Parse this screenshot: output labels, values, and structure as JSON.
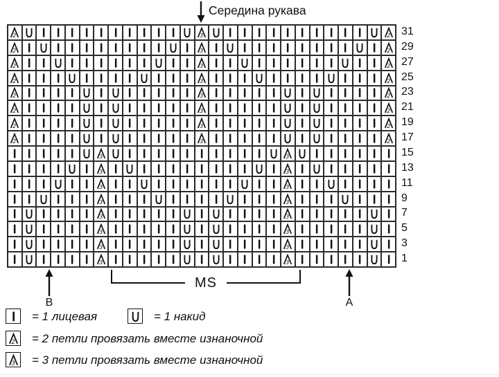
{
  "colors": {
    "ink": "#111111",
    "grid_line": "#2b2b2b",
    "background": "#ffffff"
  },
  "title": {
    "text": "Середина рукава",
    "arrow_icon": "down-arrow"
  },
  "chart": {
    "columns": 27,
    "symbol_meanings": {
      "I": "knit-stitch",
      "U": "yarn-over",
      "A2": "purl-2-together",
      "A3": "purl-3-together"
    },
    "rows": [
      {
        "num": "31",
        "cells": "A2 U I I I I I I I I I I U A3 U I I I I I I I I I I U A2"
      },
      {
        "num": "29",
        "cells": "A2 I U I I I I I I I I U I A3 I U I I I I I I I I U I A2"
      },
      {
        "num": "27",
        "cells": "A2 I I U I I I I I I U I I A3 I I U I I I I I I U I I A2"
      },
      {
        "num": "25",
        "cells": "A2 I I I U I I I I U I I I A3 I I I U I I I I U I I I A2"
      },
      {
        "num": "23",
        "cells": "A2 I I I I U I U I I I I I A3 I I I I I U I U I I I I A2"
      },
      {
        "num": "21",
        "cells": "A2 I I I I U I U I I I I I A3 I I I I I U I U I I I I A2"
      },
      {
        "num": "19",
        "cells": "A2 I I I I U I U I I I I I A3 I I I I I U I U I I I I A2"
      },
      {
        "num": "17",
        "cells": "A2 I I I I U I U I I I I I A3 I I I I I U I U I I I I A2"
      },
      {
        "num": "15",
        "cells": "I I I I I U A3 U I I I I I I I I I I U A3 U I I I I I I"
      },
      {
        "num": "13",
        "cells": "I I I I U I A3 I U I I I I I I I I U I A3 I U I I I I I"
      },
      {
        "num": "11",
        "cells": "I I I U I I A3 I I U I I I I I I U I I A3 I I U I I I I"
      },
      {
        "num": "9",
        "cells": "I I U I I I A3 I I I U I I I I U I I I A3 I I I U I I I"
      },
      {
        "num": "7",
        "cells": "I U I I I I A3 I I I I I U I U I I I I A3 I I I I I U I"
      },
      {
        "num": "5",
        "cells": "I U I I I I A3 I I I I I U I U I I I I A3 I I I I I U I"
      },
      {
        "num": "3",
        "cells": "I U I I I I A3 I I I I I U I U I I I I A3 I I I I I U I"
      },
      {
        "num": "1",
        "cells": "I U I I I I A3 I I I I I U I U I I I I A3 I I I I I U I"
      }
    ]
  },
  "annotations": {
    "marker_b_label": "B",
    "marker_a_label": "A",
    "repeat_label": "MS"
  },
  "legend": [
    {
      "symbol": "I",
      "text": "= 1 лицевая"
    },
    {
      "symbol": "U",
      "text": "= 1 накид"
    },
    {
      "symbol": "A2",
      "text": "= 2 петли провязать вместе изнаночной"
    },
    {
      "symbol": "A3",
      "text": "= 3 петли провязать вместе изнаночной"
    }
  ]
}
